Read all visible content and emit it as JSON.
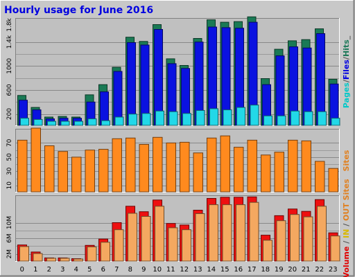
{
  "chart_data": {
    "type": "bar",
    "title": "Hourly usage for June 2016",
    "categories": [
      "0",
      "1",
      "2",
      "3",
      "4",
      "5",
      "6",
      "7",
      "8",
      "9",
      "10",
      "11",
      "12",
      "13",
      "14",
      "15",
      "16",
      "17",
      "18",
      "19",
      "20",
      "21",
      "22",
      "23"
    ],
    "panels": [
      {
        "id": "hits",
        "ylabel_parts": [
          "Pages",
          "/",
          "Files",
          "/",
          "Hits",
          "_"
        ],
        "ylabel_colors": [
          "#00c8c8",
          "#555555",
          "#0000e0",
          "#555555",
          "#1f7a5a",
          "#555555"
        ],
        "ylim": [
          0,
          1800
        ],
        "yticks": [
          200,
          600,
          1000,
          1400
        ],
        "ytick_labels": [
          "200",
          "600",
          "1000",
          "1.4k"
        ],
        "top_label": "1.8k",
        "series": [
          {
            "name": "Hits",
            "color": "#1a7a55",
            "values": [
              510,
              310,
              150,
              160,
              150,
              520,
              690,
              980,
              1480,
              1410,
              1690,
              1120,
              1010,
              1460,
              1770,
              1730,
              1740,
              1820,
              790,
              1280,
              1420,
              1440,
              1620,
              780
            ]
          },
          {
            "name": "Files",
            "color": "#0a12e0",
            "values": [
              430,
              270,
              120,
              130,
              130,
              400,
              570,
              910,
              1390,
              1350,
              1610,
              1040,
              960,
              1400,
              1650,
              1640,
              1630,
              1730,
              690,
              1170,
              1320,
              1300,
              1540,
              700
            ]
          },
          {
            "name": "Pages",
            "color": "#22d8e8",
            "values": [
              130,
              110,
              80,
              80,
              80,
              120,
              90,
              150,
              200,
              210,
              250,
              240,
              210,
              260,
              290,
              270,
              310,
              350,
              170,
              170,
              250,
              240,
              240,
              130
            ]
          }
        ]
      },
      {
        "id": "sites",
        "ylabel_parts": [
          "Sites"
        ],
        "ylabel_colors": [
          "#e08020"
        ],
        "ylim": [
          0,
          90
        ],
        "yticks": [
          10,
          30,
          50,
          70
        ],
        "ytick_labels": [
          "10",
          "30",
          "50",
          "70"
        ],
        "series": [
          {
            "name": "Sites",
            "color": "#ff8a1e",
            "values": [
              74,
              91,
              66,
              58,
              50,
              60,
              61,
              76,
              77,
              68,
              78,
              70,
              71,
              56,
              77,
              80,
              64,
              74,
              53,
              57,
              74,
              73,
              44,
              34
            ]
          }
        ]
      },
      {
        "id": "volume",
        "ylabel_parts": [
          "Volume",
          " / ",
          "IN",
          " / ",
          "OUT",
          " Sites"
        ],
        "ylabel_colors": [
          "#e00000",
          "#555555",
          "#d8b800",
          "#555555",
          "#e08020",
          "#e08020"
        ],
        "ylim": [
          0,
          17
        ],
        "yticks": [
          2,
          6,
          10
        ],
        "ytick_labels": [
          "2M",
          "6M",
          "10M"
        ],
        "series": [
          {
            "name": "Volume",
            "color": "#ee1010",
            "values": [
              4.3,
              2.5,
              1.0,
              1.0,
              0.8,
              4.2,
              5.8,
              10.0,
              14.2,
              12.8,
              15.8,
              9.8,
              9.4,
              13.2,
              16.2,
              16.5,
              16.5,
              16.6,
              6.8,
              11.8,
              13.5,
              12.9,
              15.9,
              7.4
            ]
          },
          {
            "name": "Volume OUT",
            "color": "#f4a860",
            "values": [
              3.9,
              2.1,
              0.9,
              0.9,
              0.7,
              3.8,
              5.0,
              8.2,
              12.4,
              11.6,
              14.2,
              8.7,
              8.2,
              12.3,
              14.6,
              14.6,
              14.6,
              15.2,
              5.5,
              10.5,
              12.1,
              11.5,
              14.2,
              6.6
            ]
          }
        ]
      }
    ],
    "grid": true
  }
}
